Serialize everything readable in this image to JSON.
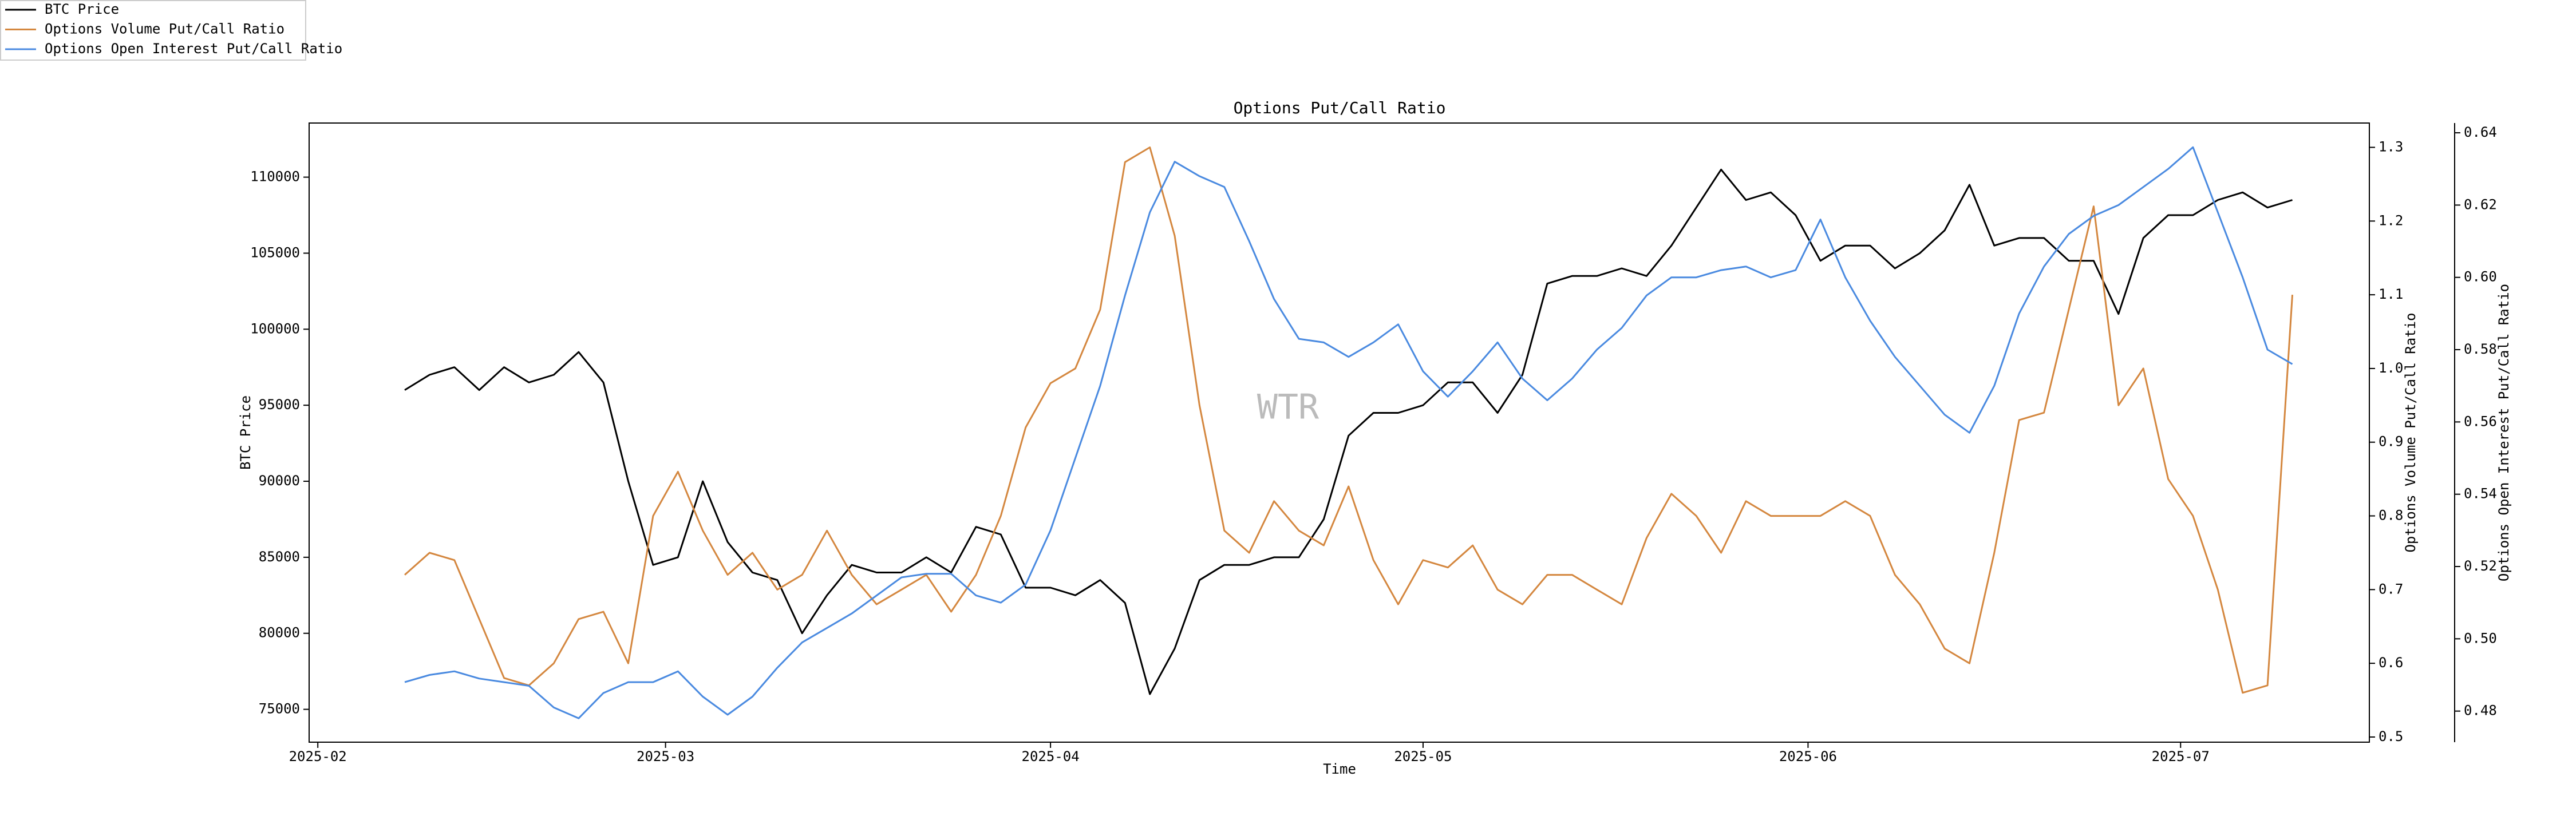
{
  "chart_data": {
    "type": "line",
    "title": "Options Put/Call Ratio",
    "x_label": "Time",
    "y_label": "BTC Price",
    "y2_label": "Options Volume Put/Call Ratio",
    "y3_label": "Options Open Interest Put/Call Ratio",
    "watermark": "WTR",
    "legend": "upper left",
    "grid": false,
    "x": [
      38,
      40,
      42,
      44,
      46,
      48,
      50,
      52,
      54,
      56,
      58,
      60,
      62,
      64,
      66,
      68,
      70,
      72,
      74,
      76,
      78,
      80,
      82,
      84,
      86,
      88,
      90,
      92,
      94,
      96,
      98,
      100,
      102,
      104,
      106,
      108,
      110,
      112,
      114,
      116,
      118,
      120,
      122,
      124,
      126,
      128,
      130,
      132,
      134,
      136,
      138,
      140,
      142,
      144,
      146,
      148,
      150,
      152,
      154,
      156,
      158,
      160,
      162,
      164,
      166,
      168,
      170,
      172,
      174,
      176,
      178,
      180,
      182,
      184,
      186,
      188,
      190
    ],
    "xlim": [
      30.3,
      196.2
    ],
    "xticks": [
      {
        "value": 31,
        "label": "2025-02"
      },
      {
        "value": 59,
        "label": "2025-03"
      },
      {
        "value": 90,
        "label": "2025-04"
      },
      {
        "value": 120,
        "label": "2025-05"
      },
      {
        "value": 151,
        "label": "2025-06"
      },
      {
        "value": 181,
        "label": "2025-07"
      }
    ],
    "ylim": [
      72840,
      113560
    ],
    "yticks": [
      75000,
      80000,
      85000,
      90000,
      95000,
      100000,
      105000,
      110000
    ],
    "y2lim": [
      0.493,
      1.333
    ],
    "y2ticks": [
      0.5,
      0.6,
      0.7,
      0.8,
      0.9,
      {
        "value": 1,
        "label": "1.0"
      },
      1.1,
      1.2,
      1.3
    ],
    "y3lim": [
      0.4714,
      0.6427
    ],
    "y3ticks": [
      0.48,
      {
        "value": 0.5,
        "label": "0.50"
      },
      0.52,
      0.54,
      0.56,
      0.58,
      {
        "value": 0.6,
        "label": "0.60"
      },
      0.62,
      0.64
    ],
    "series": [
      {
        "name": "BTC Price",
        "color": "#000000",
        "axis": "y",
        "values": [
          96000,
          97000,
          97500,
          96000,
          97500,
          96500,
          97000,
          98500,
          96500,
          90000,
          84500,
          85000,
          90000,
          86000,
          84000,
          83500,
          80000,
          82500,
          84500,
          84000,
          84000,
          85000,
          84000,
          87000,
          86500,
          83000,
          83000,
          82500,
          83500,
          82000,
          76000,
          79000,
          83500,
          84500,
          84500,
          85000,
          85000,
          87500,
          93000,
          94500,
          94500,
          95000,
          96500,
          96500,
          94500,
          97000,
          103000,
          103500,
          103500,
          104000,
          103500,
          105500,
          108000,
          110500,
          108500,
          109000,
          107500,
          104500,
          105500,
          105500,
          104000,
          105000,
          106500,
          109500,
          105500,
          106000,
          106000,
          104500,
          104500,
          101000,
          106000,
          107500,
          107500,
          108500,
          109000,
          108000,
          108500
        ]
      },
      {
        "name": "Options Volume Put/Call Ratio",
        "color": "#d4873f",
        "axis": "y2",
        "values": [
          0.72,
          0.75,
          0.74,
          0.66,
          0.58,
          0.57,
          0.6,
          0.66,
          0.67,
          0.6,
          0.8,
          0.86,
          0.78,
          0.72,
          0.75,
          0.7,
          0.72,
          0.78,
          0.72,
          0.68,
          0.7,
          0.72,
          0.67,
          0.72,
          0.8,
          0.92,
          0.98,
          1.0,
          1.08,
          1.28,
          1.3,
          1.18,
          0.95,
          0.78,
          0.75,
          0.82,
          0.78,
          0.76,
          0.84,
          0.74,
          0.68,
          0.74,
          0.73,
          0.76,
          0.7,
          0.68,
          0.72,
          0.72,
          0.7,
          0.68,
          0.77,
          0.83,
          0.8,
          0.75,
          0.82,
          0.8,
          0.8,
          0.8,
          0.82,
          0.8,
          0.72,
          0.68,
          0.62,
          0.6,
          0.75,
          0.93,
          0.94,
          1.08,
          1.22,
          0.95,
          1.0,
          0.85,
          0.8,
          0.7,
          0.56,
          0.57,
          1.1
        ]
      },
      {
        "name": "Options Open Interest Put/Call Ratio",
        "color": "#4a8ae0",
        "axis": "y3",
        "values": [
          0.488,
          0.49,
          0.491,
          0.489,
          0.488,
          0.487,
          0.481,
          0.478,
          0.485,
          0.488,
          0.488,
          0.491,
          0.484,
          0.479,
          0.484,
          0.492,
          0.499,
          0.503,
          0.507,
          0.512,
          0.517,
          0.518,
          0.518,
          0.512,
          0.51,
          0.515,
          0.53,
          0.55,
          0.57,
          0.595,
          0.618,
          0.632,
          0.628,
          0.625,
          0.61,
          0.594,
          0.583,
          0.582,
          0.578,
          0.582,
          0.587,
          0.574,
          0.567,
          0.574,
          0.582,
          0.572,
          0.566,
          0.572,
          0.58,
          0.586,
          0.595,
          0.6,
          0.6,
          0.602,
          0.603,
          0.6,
          0.602,
          0.616,
          0.6,
          0.588,
          0.578,
          0.57,
          0.562,
          0.557,
          0.57,
          0.59,
          0.603,
          0.612,
          0.617,
          0.62,
          0.625,
          0.63,
          0.636,
          0.618,
          0.6,
          0.58,
          0.576
        ]
      }
    ]
  }
}
